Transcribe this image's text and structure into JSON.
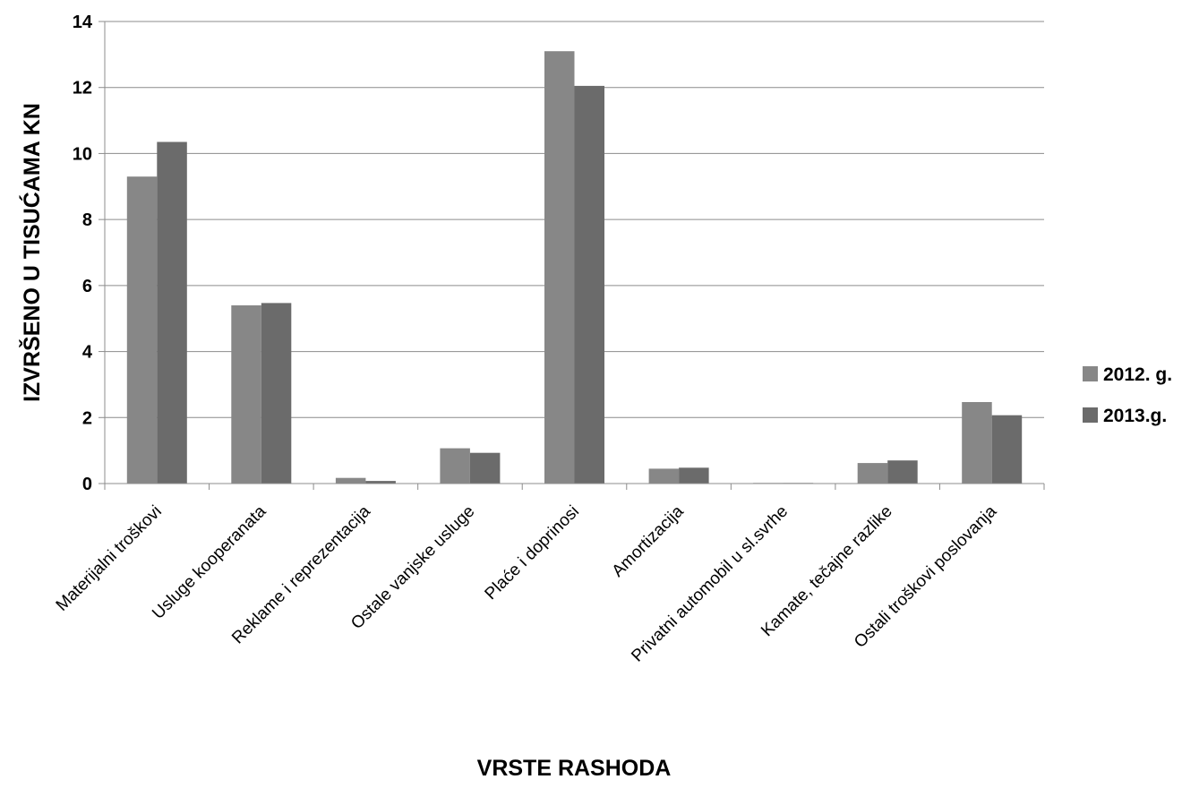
{
  "chart_data": {
    "type": "bar",
    "title": "",
    "xlabel": "VRSTE RASHODA",
    "ylabel": "IZVRŠENO U TISUĆAMA  KN",
    "ylim": [
      0,
      14
    ],
    "yticks": [
      0,
      2,
      4,
      6,
      8,
      10,
      12,
      14
    ],
    "grid": true,
    "legend_position": "right",
    "categories": [
      "Materijalni troškovi",
      "Usluge kooperanata",
      "Reklame i reprezentacija",
      "Ostale vanjske  usluge",
      "Plaće i doprinosi",
      "Amortizacija",
      "Privatni automobil u sl.svrhe",
      "Kamate, tečajne razlike",
      "Ostali troškovi poslovanja"
    ],
    "series": [
      {
        "name": "2012. g.",
        "color": "#878787",
        "values": [
          9.3,
          5.4,
          0.17,
          1.07,
          13.1,
          0.45,
          0.02,
          0.62,
          2.47
        ]
      },
      {
        "name": "2013.g.",
        "color": "#6b6b6b",
        "values": [
          10.35,
          5.47,
          0.08,
          0.93,
          12.05,
          0.48,
          0.02,
          0.7,
          2.07
        ]
      }
    ]
  }
}
